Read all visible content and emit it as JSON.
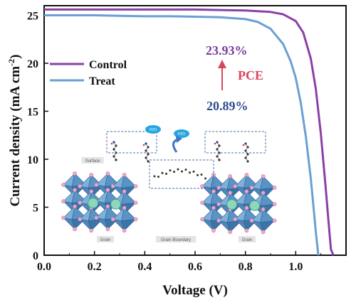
{
  "chart_data": {
    "type": "line",
    "xlabel": "Voltage (V)",
    "ylabel": "Current density (mA cm",
    "ylabel_sup": "-2",
    "ylabel_close": ")",
    "xlim": [
      0.0,
      1.2
    ],
    "ylim": [
      0,
      26
    ],
    "xticks": [
      "0.0",
      "0.2",
      "0.4",
      "0.6",
      "0.8",
      "1.0"
    ],
    "xtick_values": [
      0.0,
      0.2,
      0.4,
      0.6,
      0.8,
      1.0
    ],
    "yticks": [
      "0",
      "5",
      "10",
      "15",
      "20",
      "25"
    ],
    "ytick_values": [
      0,
      5,
      10,
      15,
      20,
      25
    ],
    "legend_position": "upper-left",
    "grid": false,
    "series": [
      {
        "name": "Control",
        "color": "#8B3FA8",
        "x": [
          0.0,
          0.1,
          0.2,
          0.3,
          0.4,
          0.5,
          0.6,
          0.7,
          0.8,
          0.9,
          0.95,
          1.0,
          1.03,
          1.06,
          1.08,
          1.1,
          1.12,
          1.13,
          1.14,
          1.15
        ],
        "y": [
          25.6,
          25.6,
          25.6,
          25.6,
          25.6,
          25.6,
          25.6,
          25.55,
          25.5,
          25.35,
          25.1,
          24.4,
          23.2,
          20.5,
          17.3,
          12.6,
          6.8,
          3.6,
          0.6,
          0.0
        ]
      },
      {
        "name": "Treat",
        "color": "#6A9FD4",
        "x": [
          0.0,
          0.1,
          0.2,
          0.3,
          0.4,
          0.5,
          0.6,
          0.7,
          0.8,
          0.85,
          0.9,
          0.95,
          0.98,
          1.0,
          1.02,
          1.04,
          1.06,
          1.07,
          1.08,
          1.09
        ],
        "y": [
          25.0,
          25.0,
          25.0,
          24.95,
          24.9,
          24.9,
          24.85,
          24.8,
          24.6,
          24.3,
          23.6,
          22.0,
          20.2,
          18.5,
          15.9,
          12.4,
          8.0,
          5.2,
          2.4,
          0.0
        ]
      }
    ],
    "annotations": {
      "pce_label": "PCE",
      "pce_control": "23.93%",
      "pce_treat": "20.89%",
      "pce_label_color": "#D9465B",
      "pce_control_color": "#7B3AA0",
      "pce_treat_color": "#2E4A8E",
      "arrow_color": "#D9465B"
    },
    "inset": {
      "labels": [
        "Surface",
        "Grain",
        "Grain Boundary",
        "Grain"
      ],
      "water_label": "H2O"
    }
  }
}
